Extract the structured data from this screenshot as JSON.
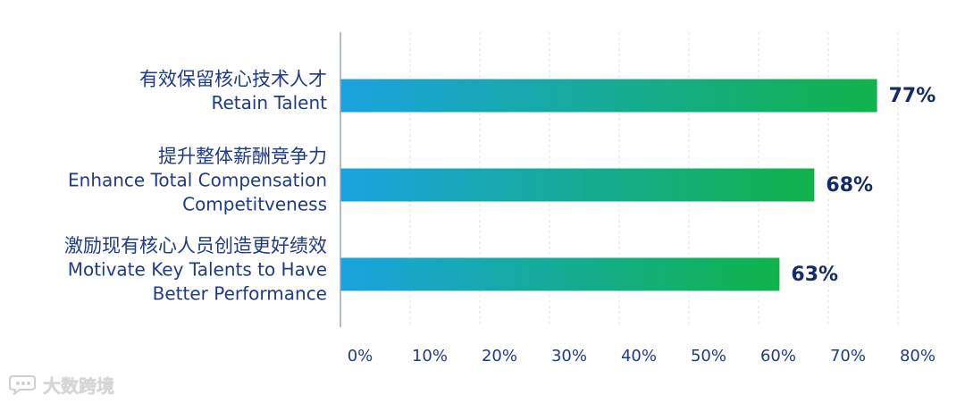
{
  "chart_data": {
    "type": "bar",
    "orientation": "horizontal",
    "categories": [
      [
        "有效保留核心技术人才",
        "Retain Talent"
      ],
      [
        "提升整体薪酬竞争力",
        "Enhance Total Compensation",
        "Competitveness"
      ],
      [
        "激励现有核心人员创造更好绩效",
        "Motivate Key Talents to Have",
        "Better Performance"
      ]
    ],
    "values": [
      77,
      68,
      63
    ],
    "value_labels": [
      "77%",
      "68%",
      "63%"
    ],
    "xlim": [
      0,
      80
    ],
    "xticks": [
      0,
      10,
      20,
      30,
      40,
      50,
      60,
      70,
      80
    ],
    "xtick_labels": [
      "0%",
      "10%",
      "20%",
      "30%",
      "40%",
      "50%",
      "60%",
      "70%",
      "80%"
    ],
    "grid": "vertical-dashed",
    "colors": {
      "bar_gradient_start": "#1aa3e0",
      "bar_gradient_end": "#10b34a",
      "label_text": "#1f3a8a",
      "value_text": "#132a6b",
      "tick_text": "#1f3a8a",
      "grid": "#e3e3e3",
      "axis": "#9aa3b5"
    }
  },
  "watermark": {
    "text": "大数跨境",
    "icon": "chat-bubble-logo-icon"
  }
}
